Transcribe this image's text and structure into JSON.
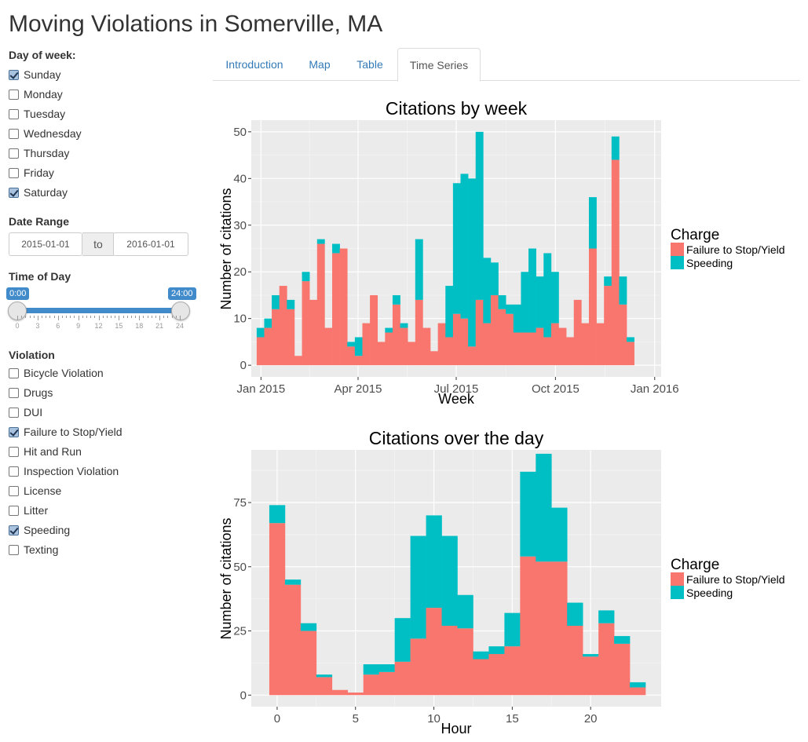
{
  "app": {
    "title": "Moving Violations in Somerville, MA"
  },
  "sidebar": {
    "day_label": "Day of week:",
    "days": [
      {
        "label": "Sunday",
        "checked": true
      },
      {
        "label": "Monday",
        "checked": false
      },
      {
        "label": "Tuesday",
        "checked": false
      },
      {
        "label": "Wednesday",
        "checked": false
      },
      {
        "label": "Thursday",
        "checked": false
      },
      {
        "label": "Friday",
        "checked": false
      },
      {
        "label": "Saturday",
        "checked": true
      }
    ],
    "date_label": "Date Range",
    "date_start": "2015-01-01",
    "date_sep": "to",
    "date_end": "2016-01-01",
    "time_label": "Time of Day",
    "time_min_label": "0:00",
    "time_max_label": "24:00",
    "time_range": [
      0,
      24
    ],
    "time_ticks": [
      "0",
      "3",
      "6",
      "9",
      "12",
      "15",
      "18",
      "21",
      "24"
    ],
    "violation_label": "Violation",
    "violations": [
      {
        "label": "Bicycle Violation",
        "checked": false
      },
      {
        "label": "Drugs",
        "checked": false
      },
      {
        "label": "DUI",
        "checked": false
      },
      {
        "label": "Failure to Stop/Yield",
        "checked": true
      },
      {
        "label": "Hit and Run",
        "checked": false
      },
      {
        "label": "Inspection Violation",
        "checked": false
      },
      {
        "label": "License",
        "checked": false
      },
      {
        "label": "Litter",
        "checked": false
      },
      {
        "label": "Speeding",
        "checked": true
      },
      {
        "label": "Texting",
        "checked": false
      }
    ]
  },
  "tabs": [
    {
      "label": "Introduction",
      "active": false
    },
    {
      "label": "Map",
      "active": false
    },
    {
      "label": "Table",
      "active": false
    },
    {
      "label": "Time Series",
      "active": true
    }
  ],
  "colors": {
    "failure": "#f8766d",
    "speeding": "#00bfc4",
    "panel": "#ebebeb",
    "accent": "#428bca"
  },
  "chart_data": [
    {
      "type": "bar",
      "stacked": true,
      "title": "Citations by week",
      "xlabel": "Week",
      "ylabel": "Number of citations",
      "legend_title": "Charge",
      "legend_position": "right",
      "grid": true,
      "x_range": [
        "2014-12-23",
        "2016-01-07"
      ],
      "ylim": [
        -2.5,
        52.5
      ],
      "xticks": [
        {
          "date": "2015-01-01",
          "label": "Jan 2015"
        },
        {
          "date": "2015-04-01",
          "label": "Apr 2015"
        },
        {
          "date": "2015-07-01",
          "label": "Jul 2015"
        },
        {
          "date": "2015-10-01",
          "label": "Oct 2015"
        },
        {
          "date": "2016-01-01",
          "label": "Jan 2016"
        }
      ],
      "yticks": [
        0,
        10,
        20,
        30,
        40,
        50
      ],
      "first_week": "2014-12-28",
      "series": [
        {
          "name": "Failure to Stop/Yield",
          "color": "#f8766d",
          "values": [
            6,
            8,
            12,
            17,
            12,
            2,
            18,
            14,
            26,
            8,
            24,
            25,
            4,
            2,
            9,
            15,
            5,
            7,
            13,
            8,
            5,
            14,
            8,
            3,
            9,
            6,
            11,
            10,
            4,
            14,
            9,
            15,
            12,
            11,
            7,
            7,
            7,
            8,
            6,
            9,
            8,
            6,
            14,
            9,
            25,
            9,
            17,
            44,
            13,
            5
          ]
        },
        {
          "name": "Speeding",
          "color": "#00bfc4",
          "values": [
            2,
            2,
            3,
            0,
            2,
            0,
            2,
            0,
            1,
            0,
            2,
            0,
            1,
            4,
            0,
            0,
            0,
            1,
            2,
            1,
            0,
            13,
            0,
            0,
            0,
            11,
            28,
            31,
            36,
            36,
            14,
            7,
            3,
            2,
            6,
            13,
            18,
            11,
            18,
            11,
            0,
            0,
            0,
            0,
            11,
            0,
            2,
            5,
            6,
            1
          ]
        }
      ]
    },
    {
      "type": "bar",
      "stacked": true,
      "title": "Citations over the day",
      "xlabel": "Hour",
      "ylabel": "Number of citations",
      "legend_title": "Charge",
      "legend_position": "right",
      "grid": true,
      "xlim": [
        -1.65,
        24.5
      ],
      "ylim": [
        -4.5,
        95.5
      ],
      "xticks": [
        0,
        5,
        10,
        15,
        20
      ],
      "yticks": [
        0,
        25,
        50,
        75
      ],
      "categories": [
        0,
        1,
        2,
        3,
        4,
        5,
        6,
        7,
        8,
        9,
        10,
        11,
        12,
        13,
        14,
        15,
        16,
        17,
        18,
        19,
        20,
        21,
        22,
        23
      ],
      "series": [
        {
          "name": "Failure to Stop/Yield",
          "color": "#f8766d",
          "values": [
            67,
            43,
            25,
            7,
            2,
            1,
            8,
            9,
            13,
            22,
            34,
            27,
            26,
            14,
            16,
            19,
            54,
            52,
            52,
            27,
            15,
            28,
            20,
            3
          ]
        },
        {
          "name": "Speeding",
          "color": "#00bfc4",
          "values": [
            7,
            2,
            3,
            1,
            0,
            0,
            4,
            3,
            17,
            40,
            36,
            35,
            13,
            3,
            3,
            13,
            33,
            42,
            21,
            9,
            1,
            5,
            3,
            2
          ]
        }
      ]
    }
  ]
}
